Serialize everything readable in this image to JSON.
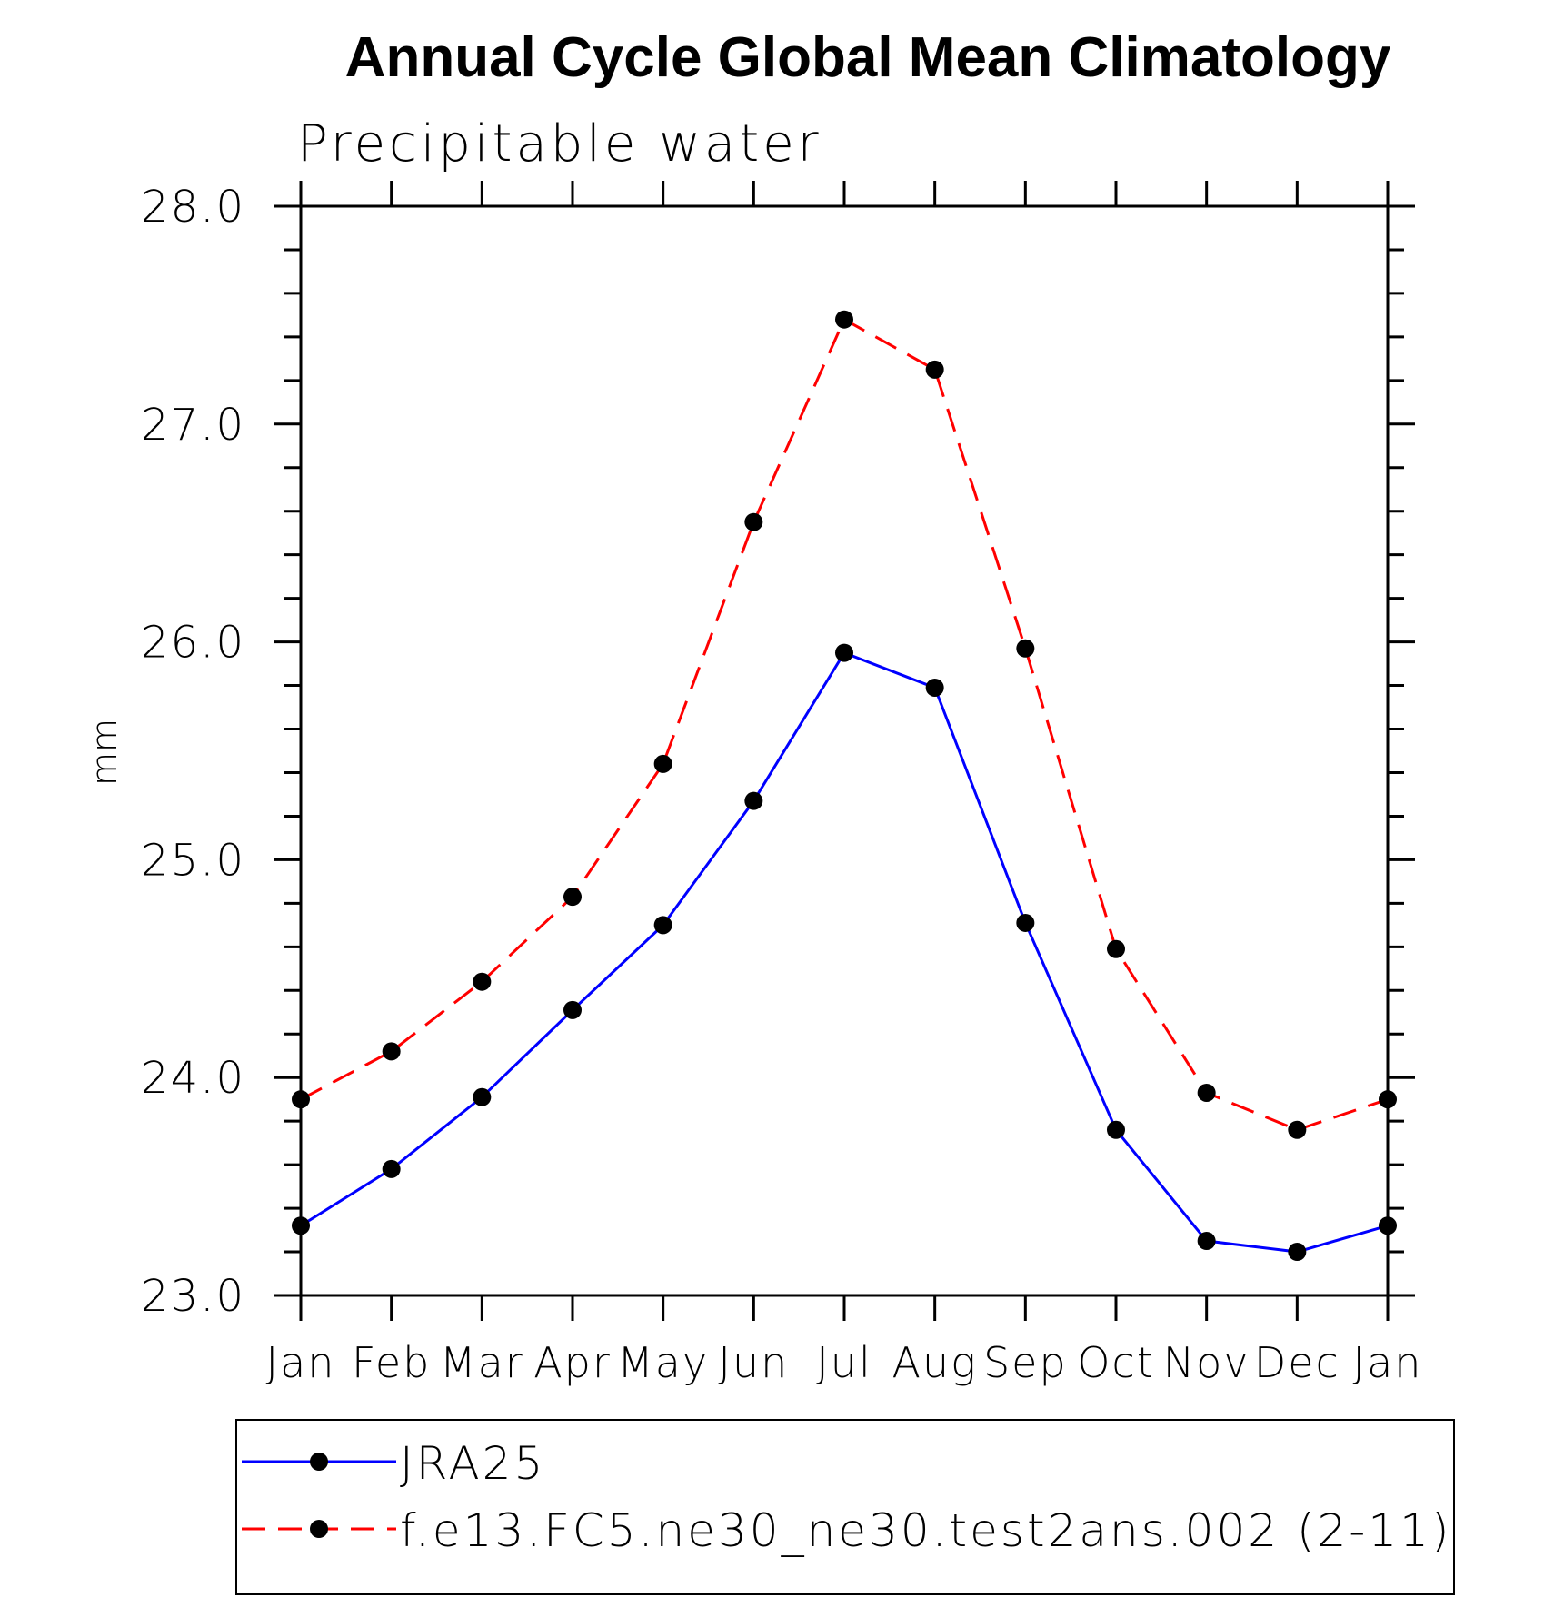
{
  "chart_data": {
    "type": "line",
    "title": "Annual Cycle Global Mean Climatology",
    "subtitle": "Precipitable water",
    "xlabel": "",
    "ylabel": "mm",
    "categories": [
      "Jan",
      "Feb",
      "Mar",
      "Apr",
      "May",
      "Jun",
      "Jul",
      "Aug",
      "Sep",
      "Oct",
      "Nov",
      "Dec",
      "Jan"
    ],
    "y_ticks": [
      "23.0",
      "24.0",
      "25.0",
      "26.0",
      "27.0",
      "28.0"
    ],
    "ylim": [
      23.0,
      28.0
    ],
    "grid": false,
    "legend_position": "bottom",
    "series": [
      {
        "name": "JRA25",
        "color": "#0000ff",
        "line_style": "solid",
        "marker": "filled-circle",
        "values": [
          23.32,
          23.58,
          23.91,
          24.31,
          24.7,
          25.27,
          25.95,
          25.79,
          24.71,
          23.76,
          23.25,
          23.2,
          23.32
        ]
      },
      {
        "name": "f.e13.FC5.ne30_ne30.test2ans.002 (2-11)",
        "color": "#ff0000",
        "line_style": "dashed",
        "marker": "filled-circle",
        "values": [
          23.9,
          24.12,
          24.44,
          24.83,
          25.44,
          26.55,
          27.48,
          27.25,
          25.97,
          24.59,
          23.93,
          23.76,
          23.9
        ]
      }
    ]
  }
}
